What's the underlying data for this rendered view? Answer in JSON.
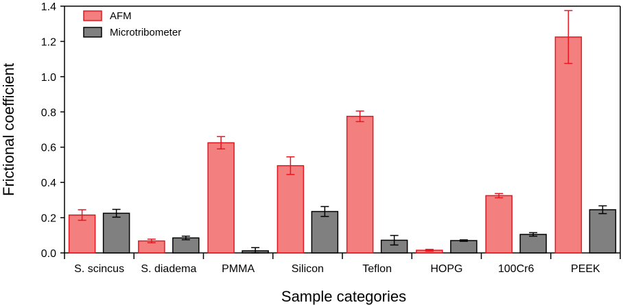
{
  "chart_data": {
    "type": "bar",
    "title": "",
    "xlabel": "Sample categories",
    "ylabel": "Frictional coefficient",
    "ylim": [
      0,
      1.4
    ],
    "yticks": [
      "0.0",
      "0.2",
      "0.4",
      "0.6",
      "0.8",
      "1.0",
      "1.2",
      "1.4"
    ],
    "ytick_values": [
      0,
      0.2,
      0.4,
      0.6,
      0.8,
      1.0,
      1.2,
      1.4
    ],
    "grid": false,
    "legend_position": "top-left",
    "categories": [
      "S. scincus",
      "S. diadema",
      "PMMA",
      "Silicon",
      "Teflon",
      "HOPG",
      "100Cr6",
      "PEEK"
    ],
    "series": [
      {
        "name": "AFM",
        "fill": "#f47f7f",
        "stroke": "#e8141e",
        "values": [
          0.215,
          0.068,
          0.625,
          0.495,
          0.775,
          0.015,
          0.325,
          1.225
        ],
        "errors": [
          0.03,
          0.01,
          0.035,
          0.05,
          0.03,
          0.005,
          0.012,
          0.15
        ]
      },
      {
        "name": "Microtribometer",
        "fill": "#808080",
        "stroke": "#000000",
        "values": [
          0.225,
          0.085,
          0.012,
          0.235,
          0.072,
          0.07,
          0.105,
          0.245
        ],
        "errors": [
          0.022,
          0.01,
          0.018,
          0.028,
          0.027,
          0.004,
          0.01,
          0.022
        ]
      }
    ]
  }
}
